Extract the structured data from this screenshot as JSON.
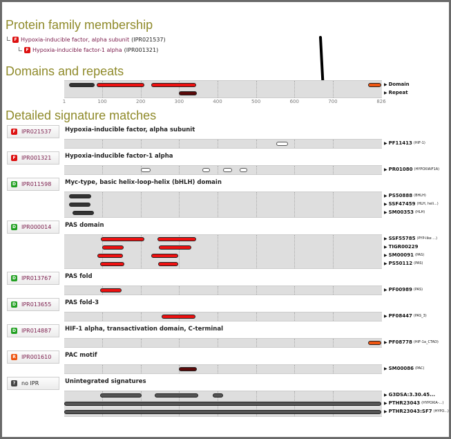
{
  "headings": {
    "family": "Protein family membership",
    "domains": "Domains and repeats",
    "detailed": "Detailed signature matches"
  },
  "family": [
    {
      "icon": "F",
      "name": "Hypoxia-inducible factor, alpha subunit",
      "acc": "(IPR021537)"
    },
    {
      "icon": "F",
      "name": "Hypoxia-inducible factor-1 alpha",
      "acc": "(IPR001321)"
    }
  ],
  "axis": {
    "length": 826,
    "ticks": [
      "1",
      "100",
      "200",
      "300",
      "400",
      "500",
      "600",
      "700",
      "826"
    ],
    "tick_values": [
      1,
      100,
      200,
      300,
      400,
      500,
      600,
      700,
      826
    ]
  },
  "colors": {
    "family": "#dd1111",
    "domain": "#22a022",
    "repeat": "#ee5511",
    "unintegrated": "#444444",
    "red": "#ee1111",
    "dark": "#333333",
    "maroon": "#5a0a0a",
    "orange": "#ee5511",
    "white": "#ffffff",
    "grey": "#555555"
  },
  "overview": {
    "labels": [
      "Domain",
      "Repeat"
    ],
    "lines": [
      [
        {
          "s": 14,
          "e": 81,
          "c": "dark"
        },
        {
          "s": 86,
          "e": 210,
          "c": "red"
        },
        {
          "s": 228,
          "e": 345,
          "c": "red"
        },
        {
          "s": 791,
          "e": 826,
          "c": "orange"
        }
      ],
      [
        {
          "s": 300,
          "e": 347,
          "c": "maroon"
        }
      ]
    ]
  },
  "entries": [
    {
      "id": "IPR021537",
      "icon": "F",
      "type": "family",
      "title": "Hypoxia-inducible factor, alpha subunit",
      "sigs": [
        {
          "acc": "PF11413",
          "name": "(HIF-1)",
          "bars": [
            {
              "s": 552,
              "e": 583,
              "c": "white"
            }
          ]
        }
      ]
    },
    {
      "id": "IPR001321",
      "icon": "F",
      "type": "family",
      "title": "Hypoxia-inducible factor-1 alpha",
      "sigs": [
        {
          "acc": "PR01080",
          "name": "(HYPOXIAIF1A)",
          "bars": [
            {
              "s": 200,
              "e": 225,
              "c": "white"
            },
            {
              "s": 360,
              "e": 380,
              "c": "white"
            },
            {
              "s": 415,
              "e": 437,
              "c": "white"
            },
            {
              "s": 457,
              "e": 478,
              "c": "white"
            }
          ]
        }
      ]
    },
    {
      "id": "IPR011598",
      "icon": "D",
      "type": "domain",
      "title": "Myc-type, basic helix-loop-helix (bHLH) domain",
      "sigs": [
        {
          "acc": "PS50888",
          "name": "(BHLH)",
          "bars": [
            {
              "s": 14,
              "e": 72,
              "c": "dark"
            }
          ]
        },
        {
          "acc": "SSF47459",
          "name": "(HLH, heli...)",
          "bars": [
            {
              "s": 14,
              "e": 70,
              "c": "dark"
            }
          ]
        },
        {
          "acc": "SM00353",
          "name": "(HLH)",
          "bars": [
            {
              "s": 23,
              "e": 79,
              "c": "dark"
            }
          ]
        }
      ]
    },
    {
      "id": "IPR000014",
      "icon": "D",
      "type": "domain",
      "title": "PAS domain",
      "sigs": [
        {
          "acc": "SSF55785",
          "name": "(PYP-like ...)",
          "bars": [
            {
              "s": 97,
              "e": 209,
              "c": "red"
            },
            {
              "s": 243,
              "e": 344,
              "c": "red"
            }
          ]
        },
        {
          "acc": "TIGR00229",
          "name": "",
          "bars": [
            {
              "s": 99,
              "e": 155,
              "c": "red"
            },
            {
              "s": 248,
              "e": 331,
              "c": "red"
            }
          ]
        },
        {
          "acc": "SM00091",
          "name": "(PAS)",
          "bars": [
            {
              "s": 88,
              "e": 153,
              "c": "red"
            },
            {
              "s": 228,
              "e": 297,
              "c": "red"
            }
          ]
        },
        {
          "acc": "PS50112",
          "name": "(PAS)",
          "bars": [
            {
              "s": 94,
              "e": 158,
              "c": "red"
            },
            {
              "s": 245,
              "e": 298,
              "c": "red"
            }
          ]
        }
      ]
    },
    {
      "id": "IPR013767",
      "icon": "D",
      "type": "domain",
      "title": "PAS fold",
      "sigs": [
        {
          "acc": "PF00989",
          "name": "(PAS)",
          "bars": [
            {
              "s": 94,
              "e": 151,
              "c": "red"
            }
          ]
        }
      ]
    },
    {
      "id": "IPR013655",
      "icon": "D",
      "type": "domain",
      "title": "PAS fold-3",
      "sigs": [
        {
          "acc": "PF08447",
          "name": "(PAS_3)",
          "bars": [
            {
              "s": 254,
              "e": 342,
              "c": "red"
            }
          ]
        }
      ]
    },
    {
      "id": "IPR014887",
      "icon": "D",
      "type": "domain",
      "title": "HIF-1 alpha, transactivation domain, C-terminal",
      "sigs": [
        {
          "acc": "PF08778",
          "name": "(HIF-1a_CTAD)",
          "bars": [
            {
              "s": 791,
              "e": 826,
              "c": "orange"
            }
          ]
        }
      ]
    },
    {
      "id": "IPR001610",
      "icon": "R",
      "type": "repeat",
      "title": "PAC motif",
      "sigs": [
        {
          "acc": "SM00086",
          "name": "(PAC)",
          "bars": [
            {
              "s": 300,
              "e": 347,
              "c": "maroon"
            }
          ]
        }
      ]
    },
    {
      "id": "no IPR",
      "icon": "?",
      "type": "unintegrated",
      "title": "Unintegrated signatures",
      "sigs": [
        {
          "acc": "G3DSA:3.30.45...",
          "name": "",
          "bars": [
            {
              "s": 94,
              "e": 203,
              "c": "grey"
            },
            {
              "s": 236,
              "e": 350,
              "c": "grey"
            },
            {
              "s": 388,
              "e": 415,
              "c": "grey"
            }
          ]
        },
        {
          "acc": "PTHR23043",
          "name": "(HYPOXIA-...)",
          "bars": [
            {
              "s": 1,
              "e": 826,
              "c": "grey"
            }
          ]
        },
        {
          "acc": "PTHR23043:SF7",
          "name": "(HYPO...)",
          "bars": [
            {
              "s": 1,
              "e": 826,
              "c": "grey"
            }
          ]
        }
      ]
    }
  ]
}
